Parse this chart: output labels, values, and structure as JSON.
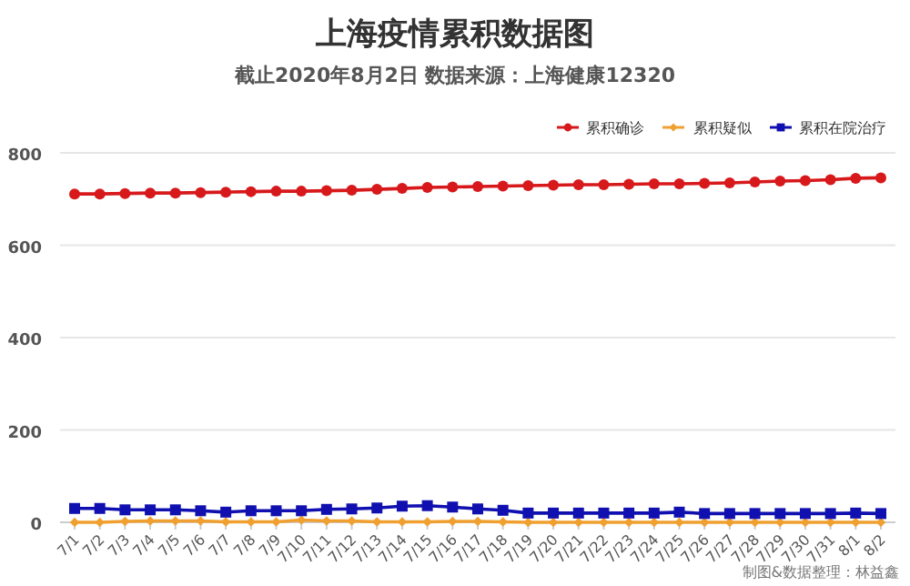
{
  "chart_data": {
    "type": "line",
    "title": "上海疫情累积数据图",
    "subtitle": "截止2020年8月2日 数据来源：上海健康12320",
    "categories": [
      "7/1",
      "7/2",
      "7/3",
      "7/4",
      "7/5",
      "7/6",
      "7/7",
      "7/8",
      "7/9",
      "7/10",
      "7/11",
      "7/12",
      "7/13",
      "7/14",
      "7/15",
      "7/16",
      "7/17",
      "7/18",
      "7/19",
      "7/20",
      "7/21",
      "7/22",
      "7/23",
      "7/24",
      "7/25",
      "7/26",
      "7/27",
      "7/28",
      "7/29",
      "7/30",
      "7/31",
      "8/1",
      "8/2"
    ],
    "series": [
      {
        "name": "累积确诊",
        "color": "#d7191c",
        "marker": "circle",
        "values": [
          711,
          711,
          712,
          713,
          713,
          714,
          715,
          716,
          717,
          717,
          718,
          719,
          721,
          723,
          725,
          726,
          727,
          728,
          729,
          730,
          731,
          731,
          732,
          733,
          733,
          734,
          735,
          737,
          739,
          740,
          742,
          745,
          746
        ]
      },
      {
        "name": "累积疑似",
        "color": "#f0a030",
        "marker": "diamond",
        "values": [
          0,
          0,
          2,
          3,
          3,
          3,
          1,
          1,
          1,
          5,
          3,
          3,
          1,
          1,
          1,
          2,
          2,
          1,
          0,
          0,
          0,
          0,
          0,
          0,
          0,
          0,
          0,
          0,
          0,
          0,
          0,
          0,
          0
        ]
      },
      {
        "name": "累积在院治疗",
        "color": "#1010b0",
        "marker": "square",
        "values": [
          30,
          30,
          27,
          27,
          27,
          25,
          22,
          25,
          25,
          25,
          28,
          29,
          31,
          35,
          36,
          33,
          29,
          26,
          20,
          20,
          20,
          20,
          20,
          20,
          22,
          19,
          19,
          19,
          19,
          19,
          19,
          20,
          19
        ]
      }
    ],
    "ylim": [
      0,
      800
    ],
    "yticks": [
      0,
      200,
      400,
      600,
      800
    ],
    "grid": "y",
    "legend": "top right",
    "line_style": "solid",
    "annotations": [
      "制图&数据整理：林益鑫"
    ]
  }
}
